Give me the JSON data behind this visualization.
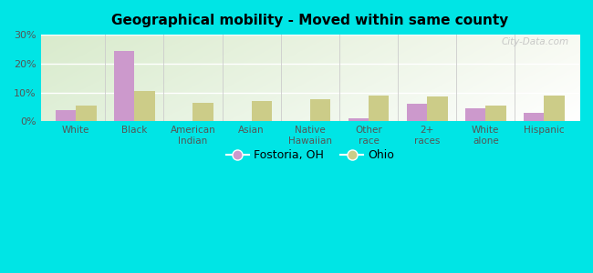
{
  "title": "Geographical mobility - Moved within same county",
  "categories": [
    "White",
    "Black",
    "American\nIndian",
    "Asian",
    "Native\nHawaiian",
    "Other\nrace",
    "2+\nraces",
    "White\nalone",
    "Hispanic"
  ],
  "fostoria_values": [
    4.0,
    24.5,
    0.0,
    0.0,
    0.0,
    1.0,
    6.0,
    4.5,
    3.0
  ],
  "ohio_values": [
    5.5,
    10.5,
    6.5,
    7.0,
    7.5,
    9.0,
    8.5,
    5.5,
    9.0
  ],
  "fostoria_color": "#cc99cc",
  "ohio_color": "#cccc88",
  "background_color": "#00e5e5",
  "ylim": [
    0,
    30
  ],
  "yticks": [
    0,
    10,
    20,
    30
  ],
  "ytick_labels": [
    "0%",
    "10%",
    "20%",
    "30%"
  ],
  "legend_labels": [
    "Fostoria, OH",
    "Ohio"
  ],
  "watermark": "City-Data.com",
  "bar_width": 0.35
}
